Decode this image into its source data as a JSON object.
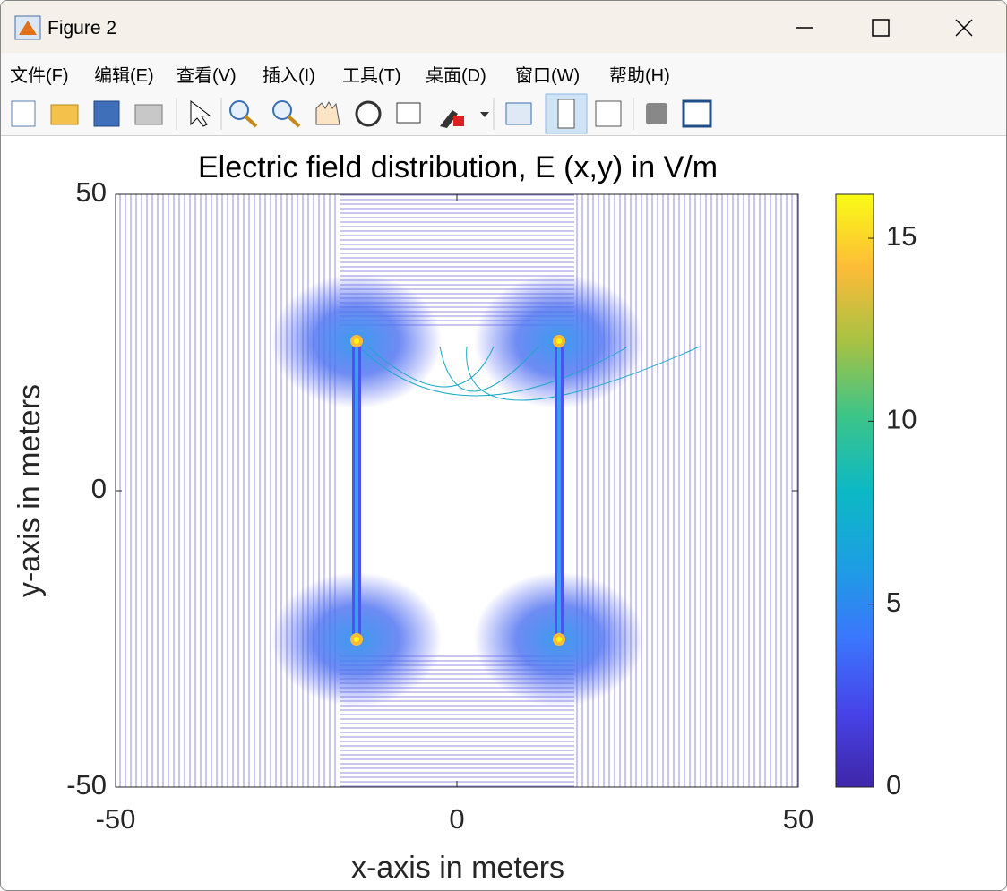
{
  "window": {
    "title": "Figure 2",
    "menu": [
      "文件(F)",
      "编辑(E)",
      "查看(V)",
      "插入(I)",
      "工具(T)",
      "桌面(D)",
      "窗口(W)",
      "帮助(H)"
    ]
  },
  "chart_data": {
    "type": "contour",
    "title": "Electric field distribution, E (x,y) in V/m",
    "xlabel": "x-axis in meters",
    "ylabel": "y-axis in meters",
    "xlim": [
      -50,
      50
    ],
    "ylim": [
      -50,
      50
    ],
    "xticks": [
      -50,
      0,
      50
    ],
    "yticks": [
      -50,
      0,
      50
    ],
    "colorbar": {
      "clim": [
        0,
        16.2
      ],
      "ticks": [
        0,
        5,
        10,
        15
      ]
    }
  }
}
